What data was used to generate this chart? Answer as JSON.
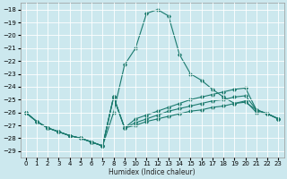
{
  "xlabel": "Humidex (Indice chaleur)",
  "ylabel": "",
  "xlim": [
    -0.5,
    23.5
  ],
  "ylim": [
    -29.5,
    -17.5
  ],
  "yticks": [
    -18,
    -19,
    -20,
    -21,
    -22,
    -23,
    -24,
    -25,
    -26,
    -27,
    -28,
    -29
  ],
  "xticks": [
    0,
    1,
    2,
    3,
    4,
    5,
    6,
    7,
    8,
    9,
    10,
    11,
    12,
    13,
    14,
    15,
    16,
    17,
    18,
    19,
    20,
    21,
    22,
    23
  ],
  "bg_color": "#cce8ee",
  "line_color": "#1a7a6e",
  "grid_color": "#ffffff",
  "line1_x": [
    0,
    1,
    2,
    3,
    4,
    5,
    6,
    7,
    8,
    9,
    10,
    11,
    12,
    13,
    14,
    15,
    16,
    17,
    18,
    19,
    20,
    21,
    22,
    23
  ],
  "line1_y": [
    -26.0,
    -26.7,
    -27.2,
    -27.5,
    -27.8,
    -28.0,
    -28.3,
    -28.6,
    -26.0,
    -22.3,
    -21.0,
    -18.3,
    -18.0,
    -18.5,
    -21.5,
    -23.0,
    -23.5,
    -24.2,
    -24.8,
    -25.3,
    -25.1,
    -26.0,
    -26.1,
    -26.5
  ],
  "line2_x": [
    0,
    1,
    2,
    3,
    4,
    5,
    6,
    7,
    8,
    9,
    10,
    11,
    12,
    13,
    14,
    15,
    16,
    17,
    18,
    19,
    20,
    21,
    22,
    23
  ],
  "line2_y": [
    -26.0,
    -26.7,
    -27.2,
    -27.5,
    -27.8,
    -28.0,
    -28.3,
    -28.6,
    -24.8,
    -27.2,
    -26.5,
    -26.2,
    -25.9,
    -25.6,
    -25.3,
    -25.0,
    -24.8,
    -24.6,
    -24.4,
    -24.2,
    -24.1,
    -25.8,
    -26.1,
    -26.5
  ],
  "line3_x": [
    0,
    1,
    2,
    3,
    4,
    5,
    6,
    7,
    8,
    9,
    10,
    11,
    12,
    13,
    14,
    15,
    16,
    17,
    18,
    19,
    20,
    21,
    22,
    23
  ],
  "line3_y": [
    -26.0,
    -26.7,
    -27.2,
    -27.5,
    -27.8,
    -28.0,
    -28.3,
    -28.6,
    -24.8,
    -27.2,
    -26.8,
    -26.5,
    -26.2,
    -25.9,
    -25.7,
    -25.5,
    -25.3,
    -25.1,
    -25.0,
    -24.8,
    -24.7,
    -25.8,
    -26.1,
    -26.5
  ],
  "line4_x": [
    0,
    1,
    2,
    3,
    4,
    5,
    6,
    7,
    8,
    9,
    10,
    11,
    12,
    13,
    14,
    15,
    16,
    17,
    18,
    19,
    20,
    21,
    22,
    23
  ],
  "line4_y": [
    -26.0,
    -26.7,
    -27.2,
    -27.5,
    -27.8,
    -28.0,
    -28.3,
    -28.6,
    -24.8,
    -27.2,
    -27.0,
    -26.7,
    -26.5,
    -26.3,
    -26.1,
    -25.9,
    -25.8,
    -25.6,
    -25.5,
    -25.3,
    -25.2,
    -25.8,
    -26.1,
    -26.5
  ]
}
